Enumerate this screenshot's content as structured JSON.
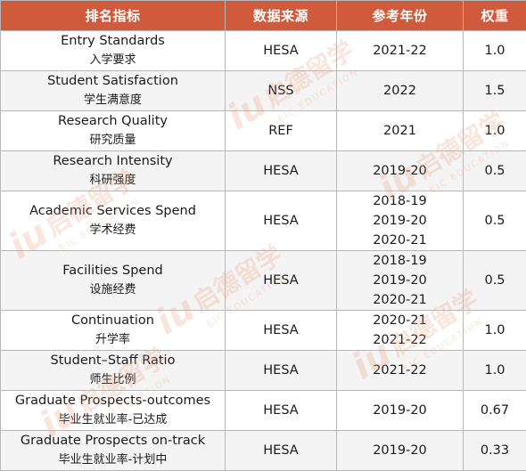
{
  "table": {
    "headers": [
      "排名指标",
      "数据来源",
      "参考年份",
      "权重"
    ],
    "rows": [
      {
        "indicator_en": "Entry Standards",
        "indicator_zh": "入学要求",
        "source": "HESA",
        "years": [
          "2021-22"
        ],
        "weight": "1.0"
      },
      {
        "indicator_en": "Student Satisfaction",
        "indicator_zh": "学生满意度",
        "source": "NSS",
        "years": [
          "2022"
        ],
        "weight": "1.5"
      },
      {
        "indicator_en": "Research Quality",
        "indicator_zh": "研究质量",
        "source": "REF",
        "years": [
          "2021"
        ],
        "weight": "1.0"
      },
      {
        "indicator_en": "Research Intensity",
        "indicator_zh": "科研强度",
        "source": "HESA",
        "years": [
          "2019-20"
        ],
        "weight": "0.5"
      },
      {
        "indicator_en": "Academic Services Spend",
        "indicator_zh": "学术经费",
        "source": "HESA",
        "years": [
          "2018-19",
          "2019-20",
          "2020-21"
        ],
        "weight": "0.5"
      },
      {
        "indicator_en": "Facilities Spend",
        "indicator_zh": "设施经费",
        "source": "HESA",
        "years": [
          "2018-19",
          "2019-20",
          "2020-21"
        ],
        "weight": "0.5"
      },
      {
        "indicator_en": "Continuation",
        "indicator_zh": "升学率",
        "source": "HESA",
        "years": [
          "2020-21",
          "2021-22"
        ],
        "weight": "1.0"
      },
      {
        "indicator_en": "Student–Staff Ratio",
        "indicator_zh": "师生比例",
        "source": "HESA",
        "years": [
          "2021-22"
        ],
        "weight": "1.0"
      },
      {
        "indicator_en": "Graduate Prospects-outcomes",
        "indicator_zh": "毕业生就业率-已达成",
        "source": "HESA",
        "years": [
          "2019-20"
        ],
        "weight": "0.67"
      },
      {
        "indicator_en": "Graduate Prospects on-track",
        "indicator_zh": "毕业生就业率-计划中",
        "source": "HESA",
        "years": [
          "2019-20"
        ],
        "weight": "0.33"
      }
    ]
  },
  "watermark": {
    "mark": "iu",
    "text_zh": "启德留学",
    "text_en": "EIC EDUCATION",
    "color": "#e8a082"
  },
  "colors": {
    "header_bg": "#cf5a3c",
    "header_text": "#ffffff",
    "border": "#b7b7b7"
  }
}
